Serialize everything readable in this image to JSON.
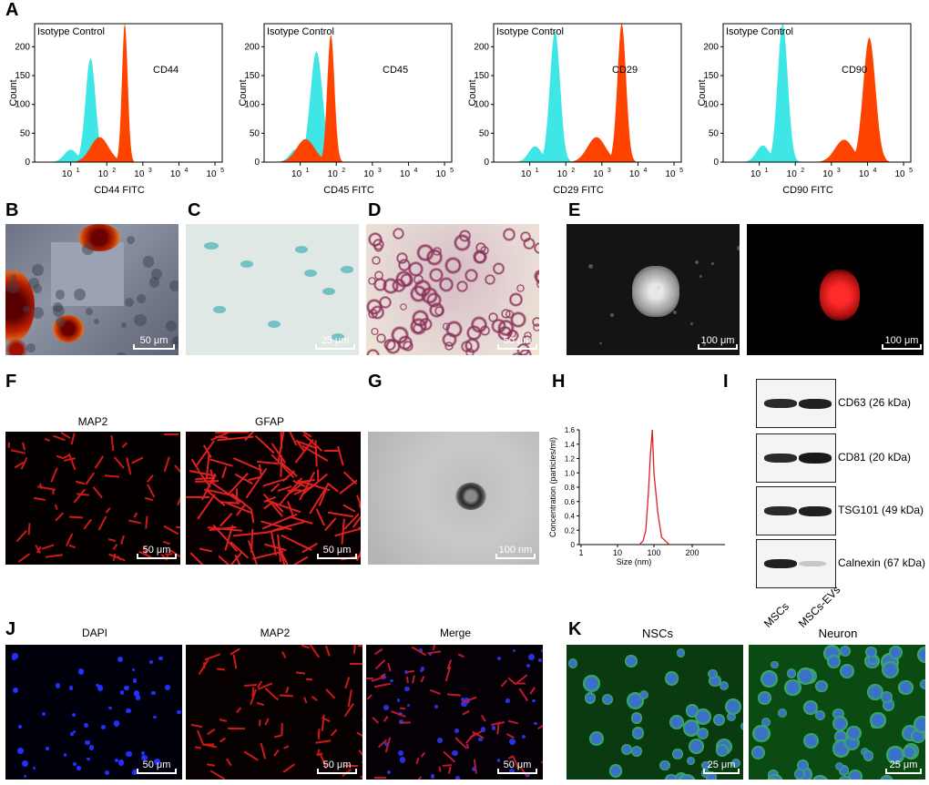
{
  "panels": {
    "A": "A",
    "B": "B",
    "C": "C",
    "D": "D",
    "E": "E",
    "F": "F",
    "G": "G",
    "H": "H",
    "I": "I",
    "J": "J",
    "K": "K"
  },
  "flow": {
    "count_label": "Count",
    "isotype_label": "Isotype Control",
    "y_ticks": [
      "0",
      "50",
      "100",
      "150",
      "200"
    ],
    "x_ticks": [
      "10",
      "1",
      "10",
      "2",
      "10",
      "3",
      "10",
      "4",
      "10",
      "5"
    ],
    "plots": [
      {
        "marker": "CD44",
        "xlabel": "CD44 FITC"
      },
      {
        "marker": "CD45",
        "xlabel": "CD45 FITC"
      },
      {
        "marker": "CD29",
        "xlabel": "CD29 FITC"
      },
      {
        "marker": "CD90",
        "xlabel": "CD90 FITC"
      }
    ],
    "isotype_color": "#3ee6e6",
    "marker_color": "#ff4400"
  },
  "scales": {
    "b": "50 μm",
    "c": "25 μm",
    "d": "50 μm",
    "e1": "100 μm",
    "e2": "100 μm",
    "f1": "50 μm",
    "f2": "50 μm",
    "g": "100 nm",
    "j1": "50 μm",
    "j2": "50 μm",
    "j3": "50 μm",
    "k1": "25 μm",
    "k2": "25 μm"
  },
  "f_titles": {
    "left": "MAP2",
    "right": "GFAP"
  },
  "j_titles": {
    "dapi": "DAPI",
    "map2": "MAP2",
    "merge": "Merge"
  },
  "k_titles": {
    "nscs": "NSCs",
    "neuron": "Neuron"
  },
  "chart_data": {
    "type": "line",
    "title": "",
    "xlabel": "Size (nm)",
    "ylabel": "Concentration (particles/ml)",
    "x_ticks": [
      "1",
      "10",
      "100",
      "200"
    ],
    "y_ticks": [
      "0",
      "0.2",
      "0.4",
      "0.6",
      "0.8",
      "1.0",
      "1.2",
      "1.4",
      "1.6"
    ],
    "ylim": [
      0,
      1.6
    ],
    "series": [
      {
        "x": [
          40,
          50,
          60,
          70,
          80,
          90,
          100,
          110,
          120,
          140
        ],
        "y": [
          0,
          0.05,
          0.2,
          0.7,
          1.25,
          1.6,
          1.0,
          0.45,
          0.1,
          0
        ]
      }
    ],
    "color": "#e02020"
  },
  "western": {
    "rows": [
      {
        "label": "CD63 (26 kDa)"
      },
      {
        "label": "CD81 (20 kDa)"
      },
      {
        "label": "TSG101 (49 kDa)"
      },
      {
        "label": "Calnexin (67 kDa)"
      }
    ],
    "lanes": [
      "MSCs",
      "MSCs-EVs"
    ]
  }
}
